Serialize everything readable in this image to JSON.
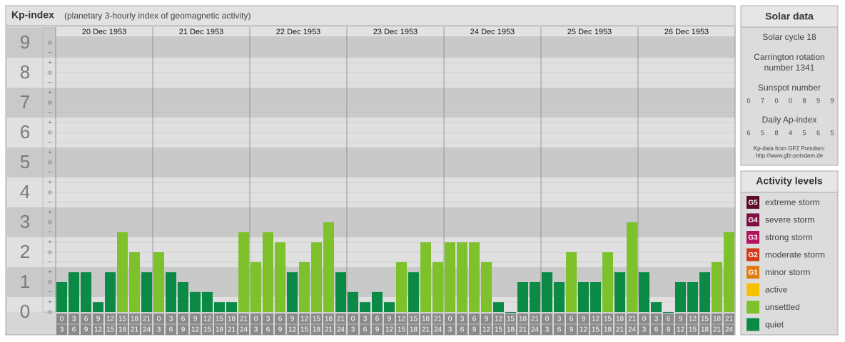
{
  "chart_data": {
    "type": "bar",
    "title": "Kp-index",
    "subtitle": "(planetary 3-hourly index of geomagnetic activity)",
    "ylim": [
      0,
      9.5
    ],
    "yticks": [
      0,
      1,
      2,
      3,
      4,
      5,
      6,
      7,
      8,
      9
    ],
    "minor_labels": [
      "−",
      "o",
      "+"
    ],
    "hour_ticks": [
      0,
      3,
      6,
      9,
      12,
      15,
      18,
      21,
      24
    ],
    "days": [
      {
        "date": "20 Dec 1953",
        "values": [
          1,
          1.33,
          1.33,
          0.33,
          1.33,
          2.67,
          2,
          1.33
        ]
      },
      {
        "date": "21 Dec 1953",
        "values": [
          2,
          1.33,
          1,
          0.67,
          0.67,
          0.33,
          0.33,
          2.67
        ]
      },
      {
        "date": "22 Dec 1953",
        "values": [
          1.67,
          2.67,
          2.33,
          1.33,
          1.67,
          2.33,
          3,
          1.33
        ]
      },
      {
        "date": "23 Dec 1953",
        "values": [
          0.67,
          0.33,
          0.67,
          0.33,
          1.67,
          1.33,
          2.33,
          1.67
        ]
      },
      {
        "date": "24 Dec 1953",
        "values": [
          2.33,
          2.33,
          2.33,
          1.67,
          0.33,
          0,
          1,
          1
        ]
      },
      {
        "date": "25 Dec 1953",
        "values": [
          1.33,
          1,
          2,
          1,
          1,
          2,
          1.33,
          3
        ]
      },
      {
        "date": "26 Dec 1953",
        "values": [
          1.33,
          0.33,
          0,
          1,
          1,
          1.33,
          1.67,
          2.67
        ]
      }
    ],
    "solar": {
      "title": "Solar data",
      "cycle": "Solar cycle 18",
      "rotation": [
        "Carrington rotation",
        "number 1341"
      ],
      "sunspot_title": "Sunspot number",
      "sunspot": [
        0,
        7,
        0,
        0,
        8,
        9,
        9
      ],
      "ap_title": "Daily Ap-index",
      "ap": [
        6,
        5,
        8,
        4,
        5,
        6,
        5
      ],
      "source": [
        "Kp-data from GFZ Potsdam:",
        "http://www.gfz-potsdam.de"
      ]
    },
    "legend": {
      "title": "Activity levels",
      "levels": [
        {
          "badge": "G5",
          "name": "extreme storm",
          "color": "#5b0b2b"
        },
        {
          "badge": "G4",
          "name": "severe storm",
          "color": "#7d1044"
        },
        {
          "badge": "G3",
          "name": "strong storm",
          "color": "#b3125c"
        },
        {
          "badge": "G2",
          "name": "moderate storm",
          "color": "#cf3b1b"
        },
        {
          "badge": "G1",
          "name": "minor storm",
          "color": "#e07b12"
        },
        {
          "name": "active",
          "color": "#f6c200"
        },
        {
          "name": "unsettled",
          "color": "#7dc22a"
        },
        {
          "name": "quiet",
          "color": "#0b8a45"
        }
      ]
    }
  }
}
